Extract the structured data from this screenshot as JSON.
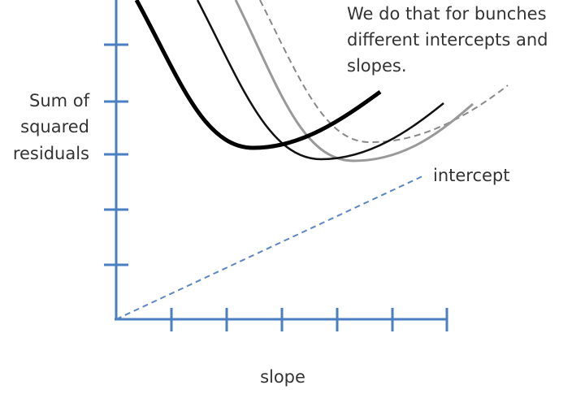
{
  "annotation": {
    "lines": [
      "We do that for bunches",
      "different intercepts and",
      "slopes."
    ]
  },
  "y_axis_label": {
    "lines": [
      "Sum of",
      "squared",
      "residuals"
    ]
  },
  "line_label": "intercept",
  "x_axis_label": "slope"
}
